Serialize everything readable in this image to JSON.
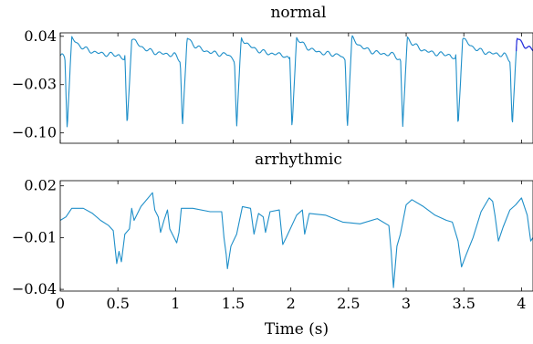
{
  "chart_data": [
    {
      "type": "line",
      "title": "normal",
      "xlabel": "",
      "ylabel": "",
      "xlim": [
        0,
        4.1
      ],
      "ylim": [
        -0.115,
        0.045
      ],
      "yticks": [
        "0.04",
        "−0.03",
        "−0.10"
      ],
      "ytick_values": [
        0.04,
        -0.03,
        -0.1
      ],
      "colors": {
        "main": "#1f8fc9",
        "overlay": "#2f2fdf"
      },
      "beat_times": [
        0.04,
        0.56,
        1.04,
        1.51,
        1.99,
        2.47,
        2.95,
        3.43,
        3.9
      ],
      "baseline": 0.012,
      "peak": 0.038,
      "trough": -0.092,
      "sample_points": [
        {
          "x": 0.0,
          "y": 0.012
        },
        {
          "x": 0.05,
          "y": -0.09
        },
        {
          "x": 0.12,
          "y": 0.035
        },
        {
          "x": 0.3,
          "y": 0.018
        },
        {
          "x": 0.49,
          "y": 0.012
        },
        {
          "x": 0.55,
          "y": -0.09
        },
        {
          "x": 0.62,
          "y": 0.037
        },
        {
          "x": 1.04,
          "y": -0.088
        },
        {
          "x": 1.1,
          "y": 0.038
        },
        {
          "x": 1.51,
          "y": -0.09
        },
        {
          "x": 1.57,
          "y": 0.037
        },
        {
          "x": 1.99,
          "y": -0.085
        },
        {
          "x": 2.05,
          "y": 0.038
        },
        {
          "x": 2.47,
          "y": -0.09
        },
        {
          "x": 2.53,
          "y": 0.038
        },
        {
          "x": 2.95,
          "y": -0.085
        },
        {
          "x": 3.01,
          "y": 0.038
        },
        {
          "x": 3.43,
          "y": -0.088
        },
        {
          "x": 3.49,
          "y": 0.038
        },
        {
          "x": 3.9,
          "y": -0.088
        },
        {
          "x": 3.97,
          "y": 0.038
        },
        {
          "x": 4.1,
          "y": 0.035
        }
      ]
    },
    {
      "type": "line",
      "title": "arrhythmic",
      "xlabel": "Time (s)",
      "ylabel": "",
      "xlim": [
        0,
        4.1
      ],
      "ylim": [
        -0.041,
        0.023
      ],
      "xticks": [
        "0",
        "0.5",
        "1",
        "1.5",
        "2",
        "2.5",
        "3",
        "3.5",
        "4"
      ],
      "xtick_values": [
        0,
        0.5,
        1,
        1.5,
        2,
        2.5,
        3,
        3.5,
        4
      ],
      "yticks": [
        "0.02",
        "−0.01",
        "−0.04"
      ],
      "ytick_values": [
        0.02,
        -0.01,
        -0.04
      ],
      "colors": {
        "main": "#1f8fc9"
      },
      "points": [
        {
          "x": 0.0,
          "y": 0.0
        },
        {
          "x": 0.05,
          "y": 0.002
        },
        {
          "x": 0.1,
          "y": 0.007
        },
        {
          "x": 0.2,
          "y": 0.007
        },
        {
          "x": 0.28,
          "y": 0.004
        },
        {
          "x": 0.35,
          "y": 0.0
        },
        {
          "x": 0.42,
          "y": -0.003
        },
        {
          "x": 0.46,
          "y": -0.006
        },
        {
          "x": 0.49,
          "y": -0.025
        },
        {
          "x": 0.51,
          "y": -0.018
        },
        {
          "x": 0.53,
          "y": -0.024
        },
        {
          "x": 0.56,
          "y": -0.008
        },
        {
          "x": 0.6,
          "y": -0.005
        },
        {
          "x": 0.62,
          "y": 0.007
        },
        {
          "x": 0.64,
          "y": 0.0
        },
        {
          "x": 0.7,
          "y": 0.008
        },
        {
          "x": 0.8,
          "y": 0.016
        },
        {
          "x": 0.82,
          "y": 0.006
        },
        {
          "x": 0.85,
          "y": 0.002
        },
        {
          "x": 0.87,
          "y": -0.007
        },
        {
          "x": 0.9,
          "y": 0.0
        },
        {
          "x": 0.93,
          "y": 0.006
        },
        {
          "x": 0.95,
          "y": -0.005
        },
        {
          "x": 0.98,
          "y": -0.009
        },
        {
          "x": 1.01,
          "y": -0.013
        },
        {
          "x": 1.03,
          "y": -0.007
        },
        {
          "x": 1.05,
          "y": 0.007
        },
        {
          "x": 1.15,
          "y": 0.007
        },
        {
          "x": 1.3,
          "y": 0.005
        },
        {
          "x": 1.4,
          "y": 0.005
        },
        {
          "x": 1.42,
          "y": -0.01
        },
        {
          "x": 1.44,
          "y": -0.02
        },
        {
          "x": 1.45,
          "y": -0.028
        },
        {
          "x": 1.48,
          "y": -0.015
        },
        {
          "x": 1.53,
          "y": -0.008
        },
        {
          "x": 1.58,
          "y": 0.008
        },
        {
          "x": 1.65,
          "y": 0.007
        },
        {
          "x": 1.68,
          "y": -0.008
        },
        {
          "x": 1.72,
          "y": 0.004
        },
        {
          "x": 1.76,
          "y": 0.002
        },
        {
          "x": 1.78,
          "y": -0.007
        },
        {
          "x": 1.82,
          "y": 0.005
        },
        {
          "x": 1.9,
          "y": 0.006
        },
        {
          "x": 1.93,
          "y": -0.014
        },
        {
          "x": 1.96,
          "y": -0.01
        },
        {
          "x": 2.05,
          "y": 0.003
        },
        {
          "x": 2.1,
          "y": 0.006
        },
        {
          "x": 2.12,
          "y": -0.008
        },
        {
          "x": 2.16,
          "y": 0.004
        },
        {
          "x": 2.3,
          "y": 0.003
        },
        {
          "x": 2.45,
          "y": -0.001
        },
        {
          "x": 2.6,
          "y": -0.002
        },
        {
          "x": 2.75,
          "y": 0.001
        },
        {
          "x": 2.85,
          "y": -0.003
        },
        {
          "x": 2.87,
          "y": -0.018
        },
        {
          "x": 2.89,
          "y": -0.039
        },
        {
          "x": 2.92,
          "y": -0.015
        },
        {
          "x": 2.95,
          "y": -0.008
        },
        {
          "x": 3.0,
          "y": 0.009
        },
        {
          "x": 3.05,
          "y": 0.012
        },
        {
          "x": 3.15,
          "y": 0.008
        },
        {
          "x": 3.25,
          "y": 0.003
        },
        {
          "x": 3.35,
          "y": 0.0
        },
        {
          "x": 3.4,
          "y": -0.001
        },
        {
          "x": 3.45,
          "y": -0.012
        },
        {
          "x": 3.48,
          "y": -0.027
        },
        {
          "x": 3.52,
          "y": -0.02
        },
        {
          "x": 3.58,
          "y": -0.01
        },
        {
          "x": 3.65,
          "y": 0.005
        },
        {
          "x": 3.72,
          "y": 0.013
        },
        {
          "x": 3.75,
          "y": 0.011
        },
        {
          "x": 3.77,
          "y": 0.003
        },
        {
          "x": 3.8,
          "y": -0.012
        },
        {
          "x": 3.84,
          "y": -0.004
        },
        {
          "x": 3.9,
          "y": 0.006
        },
        {
          "x": 3.95,
          "y": 0.009
        },
        {
          "x": 4.0,
          "y": 0.013
        },
        {
          "x": 4.05,
          "y": 0.003
        },
        {
          "x": 4.08,
          "y": -0.012
        },
        {
          "x": 4.1,
          "y": -0.01
        }
      ]
    }
  ]
}
